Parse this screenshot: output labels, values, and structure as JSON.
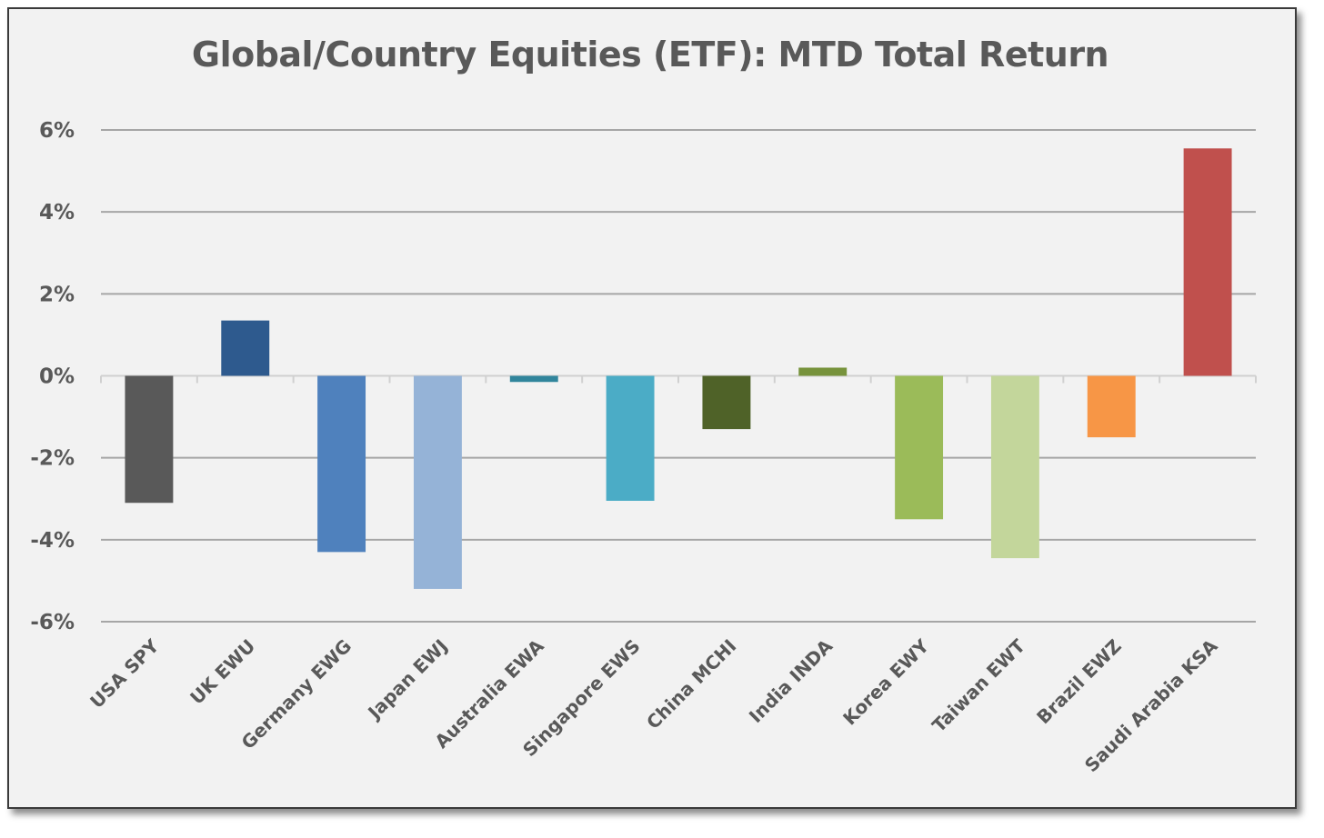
{
  "chart_data": {
    "type": "bar",
    "title": "Global/Country Equities (ETF): MTD Total Return",
    "xlabel": "",
    "ylabel": "",
    "ylim": [
      -6,
      6
    ],
    "yticks": [
      6,
      4,
      2,
      0,
      -2,
      -4,
      -6
    ],
    "ytick_labels": [
      "6%",
      "4%",
      "2%",
      "0%",
      "-2%",
      "-4%",
      "-6%"
    ],
    "grid": true,
    "legend": "none",
    "categories": [
      "USA SPY",
      "UK EWU",
      "Germany EWG",
      "Japan EWJ",
      "Australia EWA",
      "Singapore EWS",
      "China MCHI",
      "India INDA",
      "Korea EWY",
      "Taiwan EWT",
      "Brazil EWZ",
      "Saudi Arabia KSA"
    ],
    "values": [
      -3.1,
      1.35,
      -4.3,
      -5.2,
      -0.15,
      -3.05,
      -1.3,
      0.2,
      -3.5,
      -4.45,
      -1.5,
      5.55
    ],
    "colors": [
      "#595959",
      "#2e5a8e",
      "#4f81bd",
      "#95b3d7",
      "#31859c",
      "#4bacc6",
      "#4f6228",
      "#77933c",
      "#9bbb59",
      "#c3d69b",
      "#f79646",
      "#c0504d"
    ]
  }
}
